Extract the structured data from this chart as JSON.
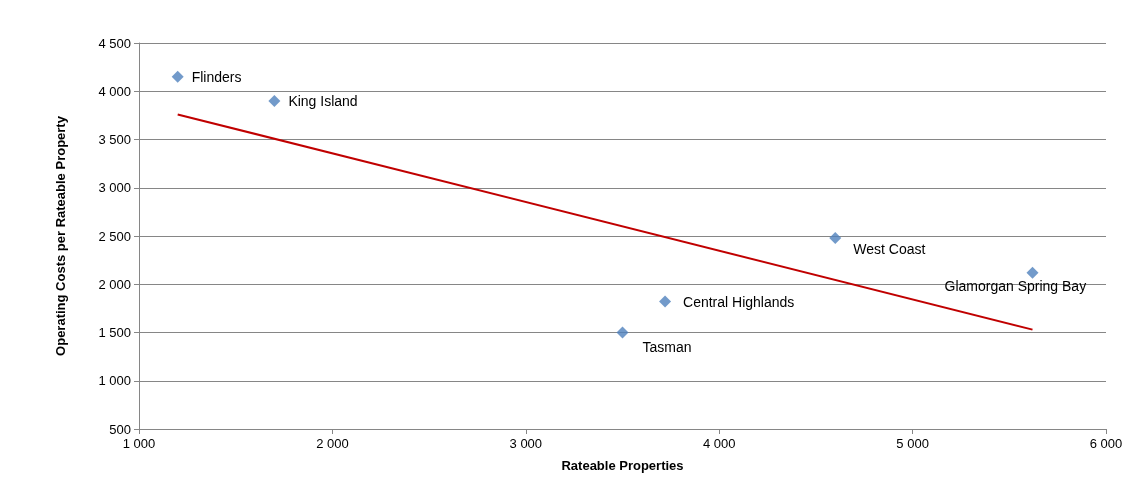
{
  "chart_data": {
    "type": "scatter",
    "xlabel": "Rateable Properties",
    "ylabel": "Operating Costs per Rateable Property",
    "xlim": [
      1000,
      6000
    ],
    "xticks": [
      {
        "value": 1000,
        "label": "1 000"
      },
      {
        "value": 2000,
        "label": "2 000"
      },
      {
        "value": 3000,
        "label": "3 000"
      },
      {
        "value": 4000,
        "label": "4 000"
      },
      {
        "value": 5000,
        "label": "5 000"
      },
      {
        "value": 6000,
        "label": "6 000"
      }
    ],
    "ylim": [
      500,
      4500
    ],
    "yticks": [
      {
        "value": 500,
        "label": "500"
      },
      {
        "value": 1000,
        "label": "1 000"
      },
      {
        "value": 1500,
        "label": "1 500"
      },
      {
        "value": 2000,
        "label": "2 000"
      },
      {
        "value": 2500,
        "label": "2 500"
      },
      {
        "value": 3000,
        "label": "3 000"
      },
      {
        "value": 3500,
        "label": "3 500"
      },
      {
        "value": 4000,
        "label": "4 000"
      },
      {
        "value": 4500,
        "label": "4 500"
      }
    ],
    "grid": "y",
    "marker": "diamond",
    "series": [
      {
        "color": "#4f81bd",
        "x": [
          1200,
          1700,
          3500,
          3720,
          4600,
          5620
        ],
        "values": [
          4150,
          3900,
          1500,
          1820,
          2480,
          2120
        ]
      },
      {
        "type": "line",
        "color": "#c00000",
        "marker": "none",
        "x": [
          1200,
          5620
        ],
        "values": [
          3760,
          1530
        ]
      }
    ],
    "annotations": [
      {
        "text": "Flinders",
        "x": 1200,
        "y": 4150
      },
      {
        "text": "King Island",
        "x": 1700,
        "y": 3900
      },
      {
        "text": "Tasman",
        "x": 3500,
        "y": 1500
      },
      {
        "text": "Central Highlands",
        "x": 3720,
        "y": 1820
      },
      {
        "text": "West Coast",
        "x": 4600,
        "y": 2480
      },
      {
        "text": "Glamorgan Spring Bay",
        "x": 5620,
        "y": 2120
      }
    ]
  }
}
